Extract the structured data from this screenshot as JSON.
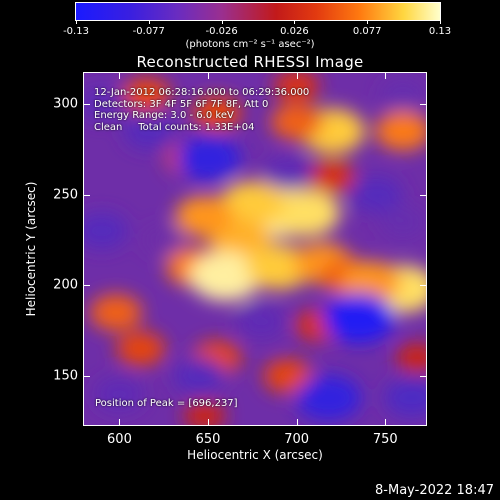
{
  "colorbar": {
    "ticks": [
      "-0.13",
      "-0.077",
      "-0.026",
      "0.026",
      "0.077",
      "0.13"
    ],
    "units": "(photons cm⁻² s⁻¹ asec⁻²)"
  },
  "chart_data": {
    "type": "heatmap",
    "title": "Reconstructed RHESSI Image",
    "xlabel": "Heliocentric X (arcsec)",
    "ylabel": "Heliocentric Y (arcsec)",
    "xlim": [
      580,
      773
    ],
    "ylim": [
      123,
      317
    ],
    "x_ticks": [
      "600",
      "650",
      "700",
      "750"
    ],
    "y_ticks": [
      "150",
      "200",
      "250",
      "300"
    ],
    "color_range": [
      -0.13,
      0.13
    ],
    "colormap": "blue-purple-red-yellow-white",
    "annotations": {
      "time_range": "12-Jan-2012 06:28:16.000 to 06:29:36.000",
      "detectors": "Detectors: 3F 4F 5F 6F 7F 8F, Att 0",
      "energy": "Energy Range: 3.0 - 6.0 keV",
      "clean": "Clean     Total counts: 1.33E+04",
      "peak": "Position of Peak = [696,237]"
    },
    "blobs": [
      {
        "x": 690,
        "y": 240,
        "value": 0.12
      },
      {
        "x": 705,
        "y": 240,
        "value": 0.11
      },
      {
        "x": 675,
        "y": 245,
        "value": 0.1
      },
      {
        "x": 668,
        "y": 225,
        "value": 0.09
      },
      {
        "x": 648,
        "y": 238,
        "value": 0.08
      },
      {
        "x": 642,
        "y": 210,
        "value": 0.07
      },
      {
        "x": 660,
        "y": 205,
        "value": 0.12
      },
      {
        "x": 690,
        "y": 210,
        "value": 0.1
      },
      {
        "x": 715,
        "y": 212,
        "value": 0.08
      },
      {
        "x": 728,
        "y": 205,
        "value": 0.06
      },
      {
        "x": 760,
        "y": 198,
        "value": 0.11
      },
      {
        "x": 742,
        "y": 202,
        "value": 0.08
      },
      {
        "x": 720,
        "y": 285,
        "value": 0.1
      },
      {
        "x": 700,
        "y": 290,
        "value": 0.06
      },
      {
        "x": 760,
        "y": 285,
        "value": 0.07
      },
      {
        "x": 655,
        "y": 295,
        "value": 0.05
      },
      {
        "x": 615,
        "y": 305,
        "value": 0.05
      },
      {
        "x": 700,
        "y": 310,
        "value": 0.04
      },
      {
        "x": 598,
        "y": 185,
        "value": 0.06
      },
      {
        "x": 612,
        "y": 165,
        "value": 0.05
      },
      {
        "x": 655,
        "y": 160,
        "value": 0.05
      },
      {
        "x": 712,
        "y": 178,
        "value": 0.04
      },
      {
        "x": 695,
        "y": 150,
        "value": 0.05
      },
      {
        "x": 648,
        "y": 128,
        "value": 0.03
      },
      {
        "x": 768,
        "y": 160,
        "value": 0.03
      },
      {
        "x": 640,
        "y": 270,
        "value": 0.05
      },
      {
        "x": 720,
        "y": 260,
        "value": 0.04
      },
      {
        "x": 650,
        "y": 270,
        "value": -0.1
      },
      {
        "x": 617,
        "y": 285,
        "value": -0.06
      },
      {
        "x": 735,
        "y": 182,
        "value": -0.12
      },
      {
        "x": 718,
        "y": 138,
        "value": -0.1
      },
      {
        "x": 765,
        "y": 138,
        "value": -0.07
      },
      {
        "x": 645,
        "y": 150,
        "value": -0.06
      },
      {
        "x": 590,
        "y": 230,
        "value": -0.06
      },
      {
        "x": 600,
        "y": 140,
        "value": -0.05
      },
      {
        "x": 745,
        "y": 250,
        "value": -0.06
      },
      {
        "x": 680,
        "y": 180,
        "value": -0.05
      },
      {
        "x": 695,
        "y": 262,
        "value": -0.05
      },
      {
        "x": 760,
        "y": 305,
        "value": -0.04
      },
      {
        "x": 590,
        "y": 300,
        "value": -0.05
      },
      {
        "x": 625,
        "y": 225,
        "value": -0.03
      },
      {
        "x": 760,
        "y": 235,
        "value": -0.04
      }
    ]
  },
  "footer": {
    "timestamp": "8-May-2022 18:47"
  }
}
